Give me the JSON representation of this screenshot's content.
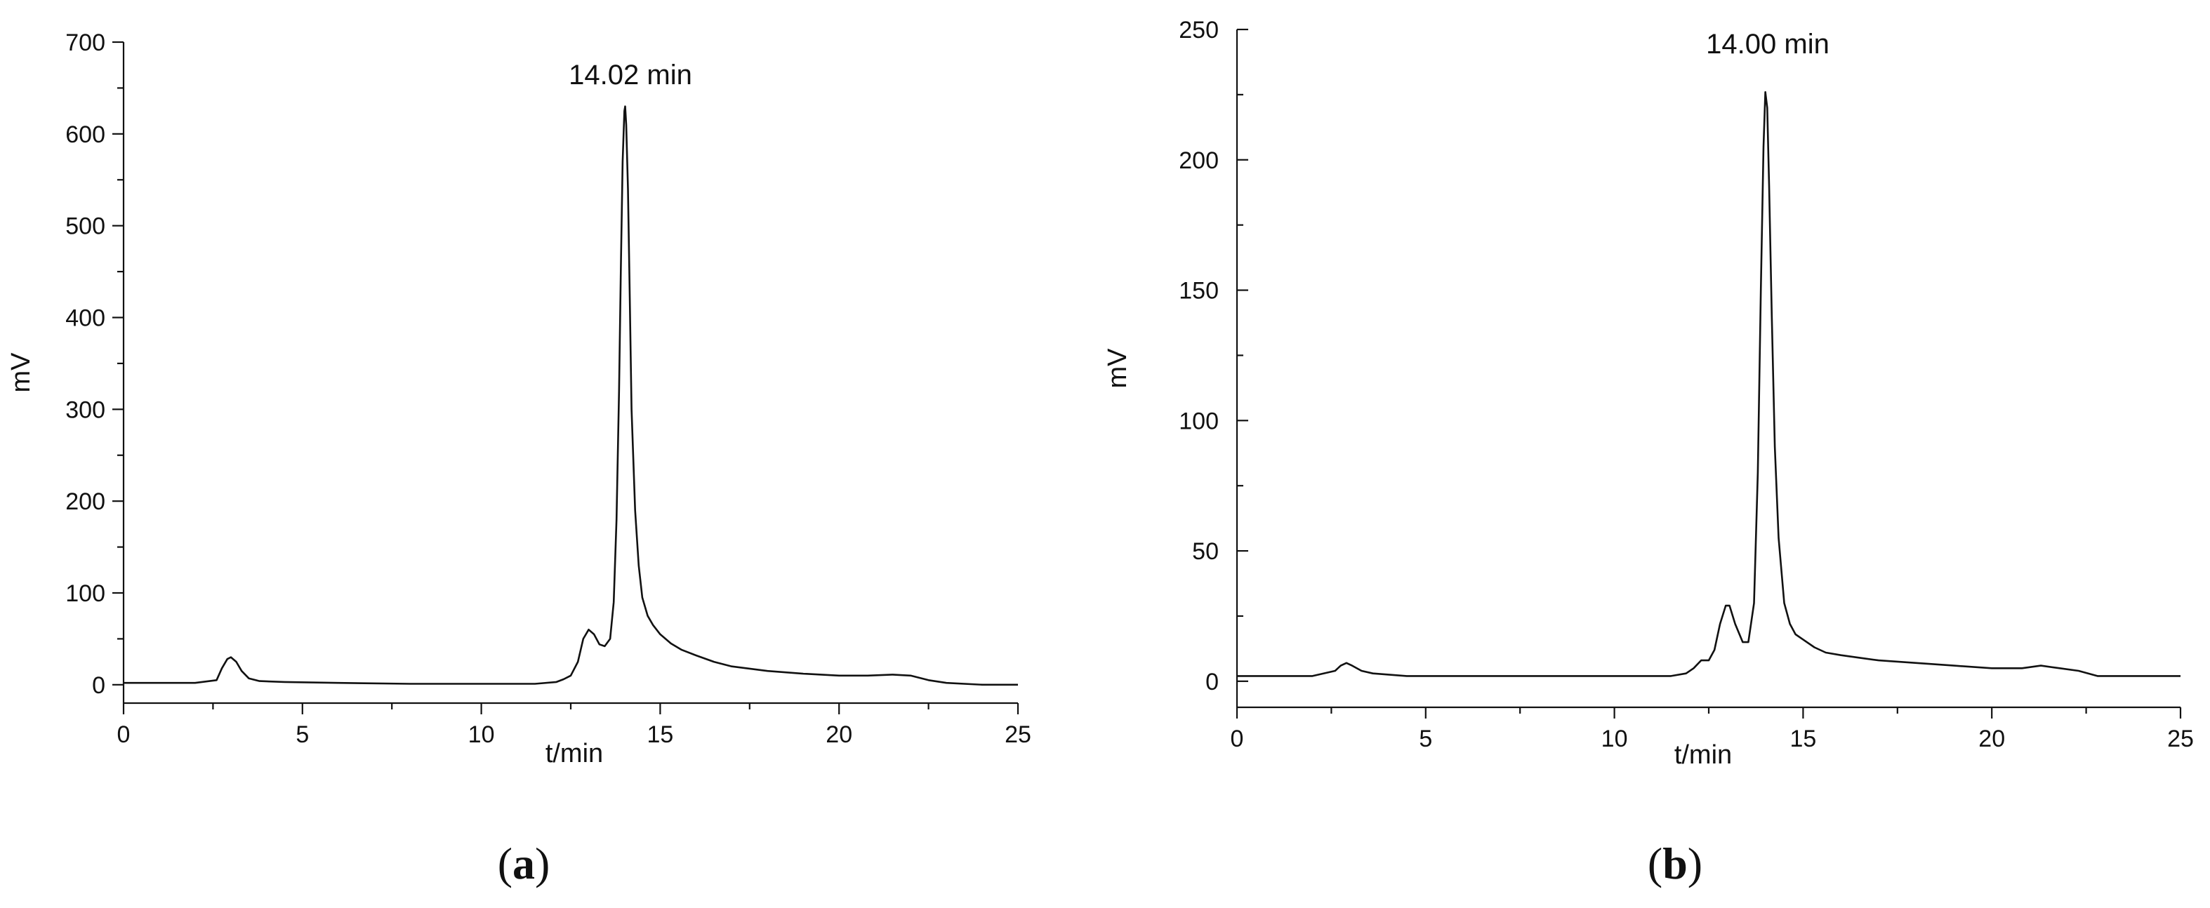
{
  "chart_data": [
    {
      "type": "line",
      "panel_label_letter": "a",
      "peak_label": "14.02 min",
      "xlabel": "t/min",
      "ylabel": "mV",
      "xlim": [
        0,
        25
      ],
      "ylim": [
        -20,
        700
      ],
      "xticks": [
        0,
        5,
        10,
        15,
        20,
        25
      ],
      "yticks": [
        0,
        100,
        200,
        300,
        400,
        500,
        600,
        700
      ],
      "grid": false,
      "series": [
        {
          "x": [
            0,
            1,
            2,
            2.6,
            2.75,
            2.9,
            3.0,
            3.15,
            3.3,
            3.5,
            3.8,
            4.5,
            6,
            8,
            10,
            11.5,
            12.1,
            12.3,
            12.5,
            12.7,
            12.85,
            13.0,
            13.15,
            13.3,
            13.45,
            13.6,
            13.7,
            13.78,
            13.85,
            13.9,
            13.95,
            14.0,
            14.02,
            14.05,
            14.1,
            14.15,
            14.2,
            14.3,
            14.4,
            14.5,
            14.65,
            14.8,
            15.0,
            15.3,
            15.6,
            16.0,
            16.5,
            17.0,
            18.0,
            19.0,
            20.0,
            20.8,
            21.5,
            22.0,
            22.5,
            23.0,
            24.0,
            25.0
          ],
          "y": [
            2,
            2,
            2,
            5,
            18,
            28,
            30,
            25,
            15,
            7,
            4,
            3,
            2,
            1,
            1,
            1,
            3,
            6,
            10,
            25,
            50,
            60,
            55,
            44,
            42,
            50,
            90,
            180,
            320,
            450,
            570,
            625,
            630,
            610,
            540,
            420,
            300,
            190,
            130,
            95,
            75,
            65,
            55,
            45,
            38,
            32,
            25,
            20,
            15,
            12,
            10,
            10,
            11,
            10,
            5,
            2,
            0,
            0
          ]
        }
      ]
    },
    {
      "type": "line",
      "panel_label_letter": "b",
      "peak_label": "14.00 min",
      "xlabel": "t/min",
      "ylabel": "mV",
      "xlim": [
        0,
        25
      ],
      "ylim": [
        -10,
        250
      ],
      "xticks": [
        0,
        5,
        10,
        15,
        20,
        25
      ],
      "yticks": [
        0,
        50,
        100,
        150,
        200,
        250
      ],
      "grid": false,
      "series": [
        {
          "x": [
            0,
            1,
            2,
            2.6,
            2.75,
            2.9,
            3.05,
            3.3,
            3.6,
            4.5,
            6,
            8,
            10,
            11.5,
            11.9,
            12.1,
            12.3,
            12.5,
            12.65,
            12.8,
            12.95,
            13.05,
            13.2,
            13.4,
            13.55,
            13.7,
            13.8,
            13.88,
            13.95,
            14.0,
            14.05,
            14.1,
            14.17,
            14.25,
            14.35,
            14.5,
            14.65,
            14.8,
            15.0,
            15.3,
            15.6,
            16.0,
            16.5,
            17.0,
            18.0,
            19.0,
            20.0,
            20.8,
            21.3,
            21.8,
            22.3,
            22.8,
            23.5,
            25.0
          ],
          "y": [
            2,
            2,
            2,
            4,
            6,
            7,
            6,
            4,
            3,
            2,
            2,
            2,
            2,
            2,
            3,
            5,
            8,
            8,
            12,
            22,
            29,
            29,
            22,
            15,
            15,
            30,
            80,
            150,
            205,
            226,
            220,
            190,
            140,
            90,
            55,
            30,
            22,
            18,
            16,
            13,
            11,
            10,
            9,
            8,
            7,
            6,
            5,
            5,
            6,
            5,
            4,
            2,
            2,
            2
          ]
        }
      ]
    }
  ]
}
